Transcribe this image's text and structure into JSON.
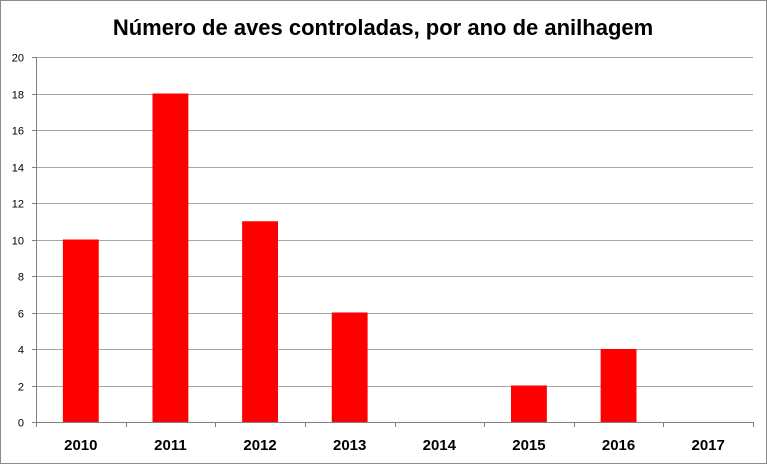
{
  "chart_data": {
    "type": "bar",
    "title": "Número de aves controladas, por ano de anilhagem",
    "xlabel": "",
    "ylabel": "",
    "categories": [
      "2010",
      "2011",
      "2012",
      "2013",
      "2014",
      "2015",
      "2016",
      "2017"
    ],
    "values": [
      10,
      18,
      11,
      6,
      0,
      2,
      4,
      0
    ],
    "ylim": [
      0,
      20
    ],
    "yticks": [
      "0",
      "2",
      "4",
      "6",
      "8",
      "10",
      "12",
      "14",
      "16",
      "18",
      "20"
    ],
    "grid": true,
    "legend": "none",
    "bar_color": "#ff0000",
    "grid_color": "#a6a6a6",
    "axis_color": "#808080"
  }
}
